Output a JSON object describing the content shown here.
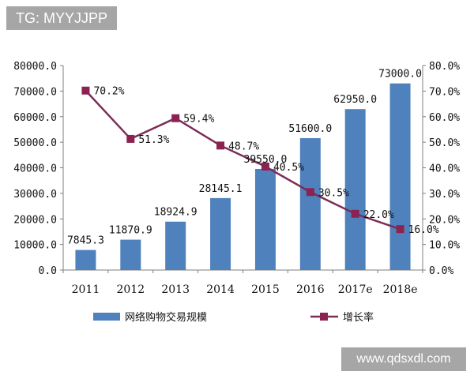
{
  "watermarks": {
    "top_left": "TG: MYYJJPP",
    "bottom_right": "www.qdsxdl.com"
  },
  "colors": {
    "bar": "#4f81bd",
    "line": "#7b2d55",
    "marker": "#8b2252",
    "axis": "#7f7f7f"
  },
  "chart_data": {
    "type": "bar",
    "categories": [
      "2011",
      "2012",
      "2013",
      "2014",
      "2015",
      "2016",
      "2017e",
      "2018e"
    ],
    "series": [
      {
        "name": "网络购物交易规模",
        "type": "bar",
        "axis": "left",
        "values": [
          7845.3,
          11870.9,
          18924.9,
          28145.1,
          39550.0,
          51600.0,
          62950.0,
          73000.0
        ],
        "labels": [
          "7845.3",
          "11870.9",
          "18924.9",
          "28145.1",
          "39550.0",
          "51600.0",
          "62950.0",
          "73000.0"
        ]
      },
      {
        "name": "增长率",
        "type": "line",
        "axis": "right",
        "values": [
          70.2,
          51.3,
          59.4,
          48.7,
          40.5,
          30.5,
          22.0,
          16.0
        ],
        "labels": [
          "70.2%",
          "51.3%",
          "59.4%",
          "48.7%",
          "40.5%",
          "30.5%",
          "22.0%",
          "16.0%"
        ]
      }
    ],
    "y_left": {
      "min": 0,
      "max": 80000,
      "ticks": [
        "0.0",
        "10000.0",
        "20000.0",
        "30000.0",
        "40000.0",
        "50000.0",
        "60000.0",
        "70000.0",
        "80000.0"
      ]
    },
    "y_right": {
      "min": 0,
      "max": 80,
      "ticks": [
        "0.0%",
        "10.0%",
        "20.0%",
        "30.0%",
        "40.0%",
        "50.0%",
        "60.0%",
        "70.0%",
        "80.0%"
      ]
    },
    "legend_position": "bottom",
    "grid": false
  }
}
